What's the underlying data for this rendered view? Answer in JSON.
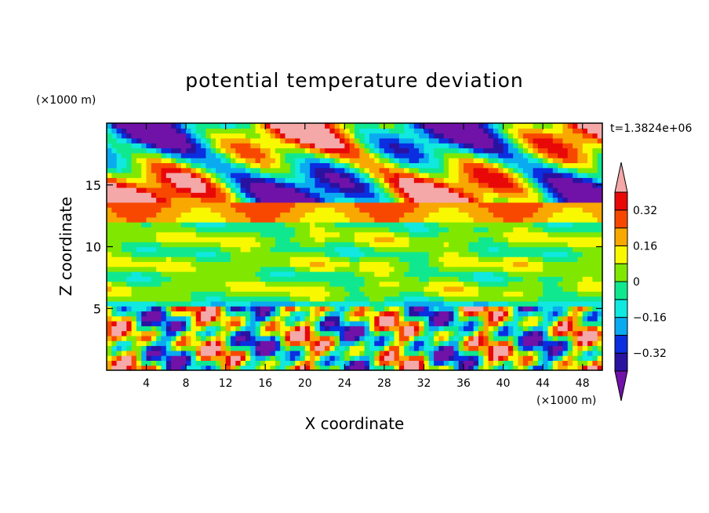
{
  "chart_data": {
    "type": "heatmap",
    "title": "potential temperature deviation",
    "xlabel": "X coordinate",
    "ylabel": "Z coordinate",
    "x_unit": "(×1000 m)",
    "y_unit": "(×1000 m)",
    "time_label": "t=1.3824e+06",
    "xlim": [
      0,
      50
    ],
    "ylim": [
      0,
      20
    ],
    "x_ticks": [
      4,
      8,
      12,
      16,
      20,
      24,
      28,
      32,
      36,
      40,
      44,
      48
    ],
    "y_ticks": [
      5,
      10,
      15
    ],
    "colorbar": {
      "levels": [
        -0.4,
        -0.32,
        -0.24,
        -0.16,
        -0.08,
        0,
        0.08,
        0.16,
        0.24,
        0.32,
        0.4
      ],
      "tick_labels": [
        "0.32",
        "0.16",
        "0",
        "-0.16",
        "-0.32"
      ],
      "tick_values": [
        0.32,
        0.16,
        0,
        -0.16,
        -0.32
      ],
      "extend": "both",
      "colors": [
        "#7012a8",
        "#2a12a0",
        "#0a2ee0",
        "#0aaaf0",
        "#10e8e0",
        "#10e890",
        "#80e800",
        "#f8f800",
        "#f8a800",
        "#f84800",
        "#e80808",
        "#f4a8a8"
      ]
    }
  }
}
